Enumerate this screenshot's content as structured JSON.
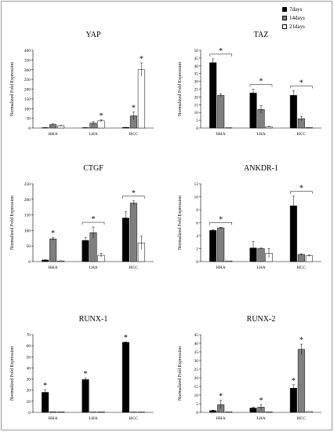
{
  "legend": [
    {
      "name": "7days",
      "color": "#000000"
    },
    {
      "name": "14days",
      "color": "#7f7f7f"
    },
    {
      "name": "21days",
      "color": "#ffffff"
    }
  ],
  "chart_data": [
    {
      "type": "bar",
      "title": "YAP",
      "ylabel": "Normalized Fold Expression",
      "categories": [
        "HHA",
        "LHA",
        "HCC"
      ],
      "ylim": [
        0,
        400
      ],
      "yticks": [
        0,
        50,
        100,
        150,
        200,
        250,
        300,
        350,
        400
      ],
      "series": [
        {
          "name": "7days",
          "values": [
            2,
            2,
            3
          ],
          "errors": [
            0.5,
            0.5,
            1
          ]
        },
        {
          "name": "14days",
          "values": [
            18,
            25,
            63
          ],
          "errors": [
            3,
            8,
            20
          ]
        },
        {
          "name": "21days",
          "values": [
            12,
            37,
            300
          ],
          "errors": [
            2,
            5,
            35
          ]
        }
      ],
      "annotations": [
        {
          "category": "LHA",
          "series": "21days",
          "text": "*"
        },
        {
          "category": "HCC",
          "series": "14days",
          "text": "*"
        },
        {
          "category": "HCC",
          "series": "21days",
          "text": "*"
        }
      ]
    },
    {
      "type": "bar",
      "title": "TAZ",
      "ylabel": "Normalized Fold Expression",
      "categories": [
        "HHA",
        "LHA",
        "HCC"
      ],
      "ylim": [
        0,
        50
      ],
      "yticks": [
        0,
        5,
        10,
        15,
        20,
        25,
        30,
        35,
        40,
        45,
        50
      ],
      "series": [
        {
          "name": "7days",
          "values": [
            42,
            22.5,
            21
          ],
          "errors": [
            2.5,
            2.5,
            3
          ]
        },
        {
          "name": "14days",
          "values": [
            21,
            12,
            6
          ],
          "errors": [
            1,
            2.5,
            1.5
          ]
        },
        {
          "name": "21days",
          "values": [
            0.2,
            0.8,
            0.3
          ],
          "errors": [
            0,
            0.3,
            0
          ]
        }
      ],
      "annotations": [
        {
          "category": "HHA",
          "text": "*",
          "bracket": true
        },
        {
          "category": "LHA",
          "text": "*",
          "bracket": true
        },
        {
          "category": "HCC",
          "text": "*",
          "bracket": true
        }
      ]
    },
    {
      "type": "bar",
      "title": "CTGF",
      "ylabel": "Normalized Fold Expression",
      "categories": [
        "HHA",
        "LHA",
        "HCC"
      ],
      "ylim": [
        0,
        250
      ],
      "yticks": [
        0,
        50,
        100,
        150,
        200,
        250
      ],
      "series": [
        {
          "name": "7days",
          "values": [
            5,
            68,
            140
          ],
          "errors": [
            1,
            10,
            20
          ]
        },
        {
          "name": "14days",
          "values": [
            73,
            93,
            188
          ],
          "errors": [
            5,
            18,
            7
          ]
        },
        {
          "name": "21days",
          "values": [
            2,
            20,
            60
          ],
          "errors": [
            0.5,
            7,
            22
          ]
        }
      ],
      "annotations": [
        {
          "category": "HHA",
          "series": "14days",
          "text": "*"
        },
        {
          "category": "LHA",
          "text": "*",
          "bracket": true
        },
        {
          "category": "HCC",
          "text": "*",
          "bracket": true
        }
      ]
    },
    {
      "type": "bar",
      "title": "ANKDR-1",
      "ylabel": "Normalized Fold Expression",
      "categories": [
        "HHA",
        "LHA",
        "HCC"
      ],
      "ylim": [
        0,
        12
      ],
      "yticks": [
        0,
        2,
        4,
        6,
        8,
        10,
        12
      ],
      "series": [
        {
          "name": "7days",
          "values": [
            4.8,
            2.1,
            8.6
          ],
          "errors": [
            0.1,
            1.0,
            1.5
          ]
        },
        {
          "name": "14days",
          "values": [
            5.2,
            2.0,
            1.1
          ],
          "errors": [
            0.1,
            0.1,
            0.1
          ]
        },
        {
          "name": "21days",
          "values": [
            0.1,
            1.3,
            0.9
          ],
          "errors": [
            0,
            0.7,
            0.1
          ]
        }
      ],
      "annotations": [
        {
          "category": "HHA",
          "text": "*",
          "bracket": true
        },
        {
          "category": "HCC",
          "text": "*",
          "bracket": true
        }
      ]
    },
    {
      "type": "bar",
      "title": "RUNX-1",
      "ylabel": "Normalized Fold Expression",
      "categories": [
        "HHA",
        "LHA",
        "HCC"
      ],
      "ylim": [
        0,
        70
      ],
      "yticks": [
        0,
        10,
        20,
        30,
        40,
        50,
        60,
        70
      ],
      "series": [
        {
          "name": "7days",
          "values": [
            18,
            29.5,
            63
          ],
          "errors": [
            2.5,
            1.5,
            0.5
          ]
        },
        {
          "name": "14days",
          "values": [
            0.5,
            0.3,
            0.3
          ],
          "errors": [
            0,
            0,
            0
          ]
        },
        {
          "name": "21days",
          "values": [
            0.5,
            0.5,
            0.2
          ],
          "errors": [
            0,
            0,
            0
          ]
        }
      ],
      "annotations": [
        {
          "category": "HHA",
          "series": "7days",
          "text": "*"
        },
        {
          "category": "LHA",
          "series": "7days",
          "text": "*"
        },
        {
          "category": "HCC",
          "series": "7days",
          "text": "*"
        }
      ]
    },
    {
      "type": "bar",
      "title": "RUNX-2",
      "ylabel": "Normalized Fold Expression",
      "categories": [
        "HHA",
        "LHA",
        "HCC"
      ],
      "ylim": [
        0,
        45
      ],
      "yticks": [
        0,
        5,
        10,
        15,
        20,
        25,
        30,
        35,
        40,
        45
      ],
      "series": [
        {
          "name": "7days",
          "values": [
            1,
            2.5,
            14
          ],
          "errors": [
            0.3,
            0.5,
            2
          ]
        },
        {
          "name": "14days",
          "values": [
            4.5,
            3,
            36.5
          ],
          "errors": [
            2.5,
            1.5,
            3
          ]
        },
        {
          "name": "21days",
          "values": [
            0.3,
            0.3,
            0.5
          ],
          "errors": [
            0,
            0,
            0
          ]
        }
      ],
      "annotations": [
        {
          "category": "HHA",
          "series": "14days",
          "text": "*"
        },
        {
          "category": "LHA",
          "series": "14days",
          "text": "*"
        },
        {
          "category": "HCC",
          "series": "7days",
          "text": "*"
        },
        {
          "category": "HCC",
          "series": "14days",
          "text": "*"
        }
      ]
    }
  ]
}
